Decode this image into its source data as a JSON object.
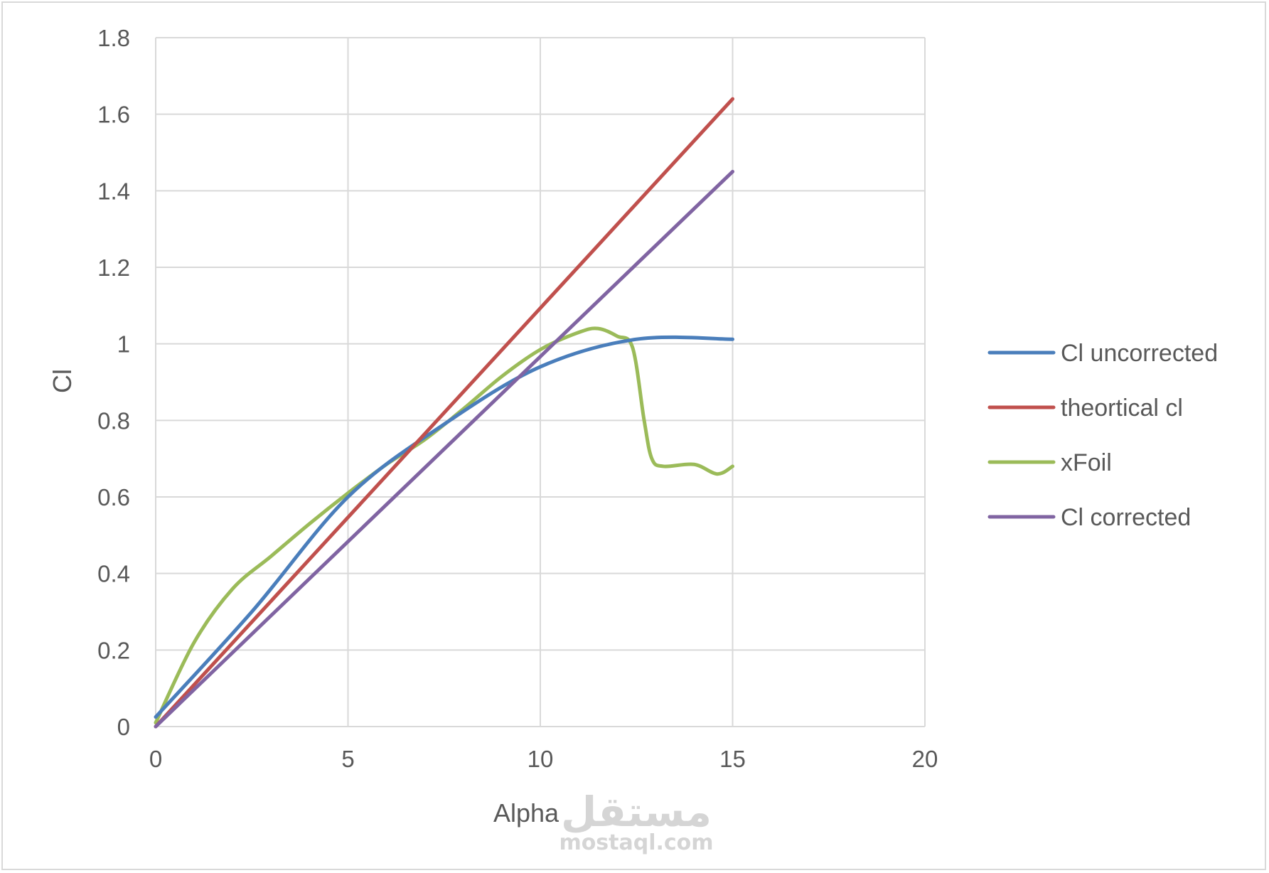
{
  "chart_data": {
    "type": "line",
    "title": "",
    "xlabel": "Alpha",
    "ylabel": "Cl",
    "xlim": [
      0,
      20
    ],
    "ylim": [
      0,
      1.8
    ],
    "x_ticks": [
      0,
      5,
      10,
      15,
      20
    ],
    "y_ticks": [
      0,
      0.2,
      0.4,
      0.6,
      0.8,
      1,
      1.2,
      1.4,
      1.6,
      1.8
    ],
    "grid": true,
    "legend_position": "right",
    "series": [
      {
        "name": "Cl uncorrected",
        "color": "#4a7ebb",
        "points": [
          [
            0,
            0.025
          ],
          [
            2.5,
            0.3
          ],
          [
            5,
            0.6
          ],
          [
            7.5,
            0.79
          ],
          [
            10,
            0.94
          ],
          [
            12.5,
            1.012
          ],
          [
            15,
            1.012
          ]
        ]
      },
      {
        "name": "theortical cl",
        "color": "#c0504d",
        "points": [
          [
            0,
            0
          ],
          [
            15,
            1.64
          ]
        ]
      },
      {
        "name": "xFoil",
        "color": "#9bbb59",
        "points": [
          [
            0,
            0.01
          ],
          [
            1,
            0.22
          ],
          [
            2,
            0.36
          ],
          [
            3,
            0.445
          ],
          [
            4,
            0.53
          ],
          [
            5,
            0.61
          ],
          [
            6,
            0.685
          ],
          [
            7,
            0.75
          ],
          [
            8,
            0.83
          ],
          [
            9,
            0.915
          ],
          [
            10,
            0.985
          ],
          [
            11,
            1.03
          ],
          [
            11.5,
            1.04
          ],
          [
            12,
            1.02
          ],
          [
            12.4,
            0.99
          ],
          [
            12.7,
            0.8
          ],
          [
            12.9,
            0.7
          ],
          [
            13.2,
            0.68
          ],
          [
            14,
            0.685
          ],
          [
            14.6,
            0.66
          ],
          [
            15,
            0.68
          ]
        ]
      },
      {
        "name": "Cl corrected",
        "color": "#8064a2",
        "points": [
          [
            0,
            0
          ],
          [
            15,
            1.45
          ]
        ]
      }
    ]
  },
  "watermark": {
    "arabic": "مستقل",
    "latin": "mostaql.com"
  }
}
